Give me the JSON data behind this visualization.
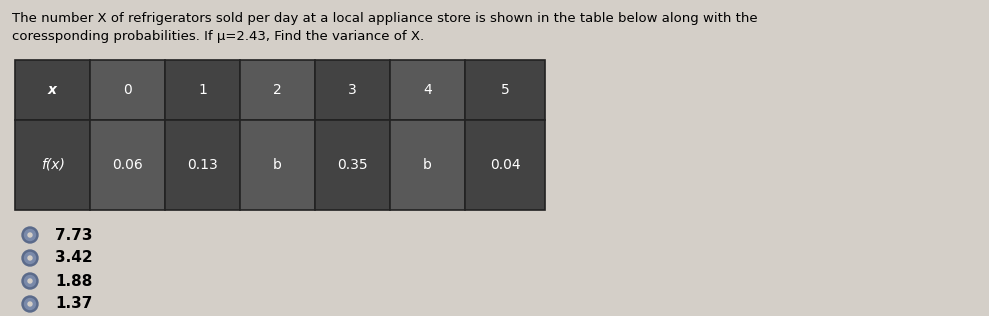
{
  "title_line1": "The number X of refrigerators sold per day at a local appliance store is shown in the table below along with the",
  "title_line2": "coressponding probabilities. If μ=2.43, Find the variance of X.",
  "table_headers": [
    "x",
    "0",
    "1",
    "2",
    "3",
    "4",
    "5"
  ],
  "table_row": [
    "f(x)",
    "0.06",
    "0.13",
    "b",
    "0.35",
    "b",
    "0.04"
  ],
  "choices": [
    "7.73",
    "3.42",
    "1.88",
    "1.37"
  ],
  "bg_color": "#d4cfc8",
  "cell_dark": "#4a4a4a",
  "cell_light": "#636363",
  "cell_text_color": "#ffffff",
  "title_fontsize": 9.5,
  "table_fontsize": 10,
  "choice_fontsize": 11,
  "bullet_color": "#7a8aaa",
  "bullet_outline": "#5a6a8a"
}
